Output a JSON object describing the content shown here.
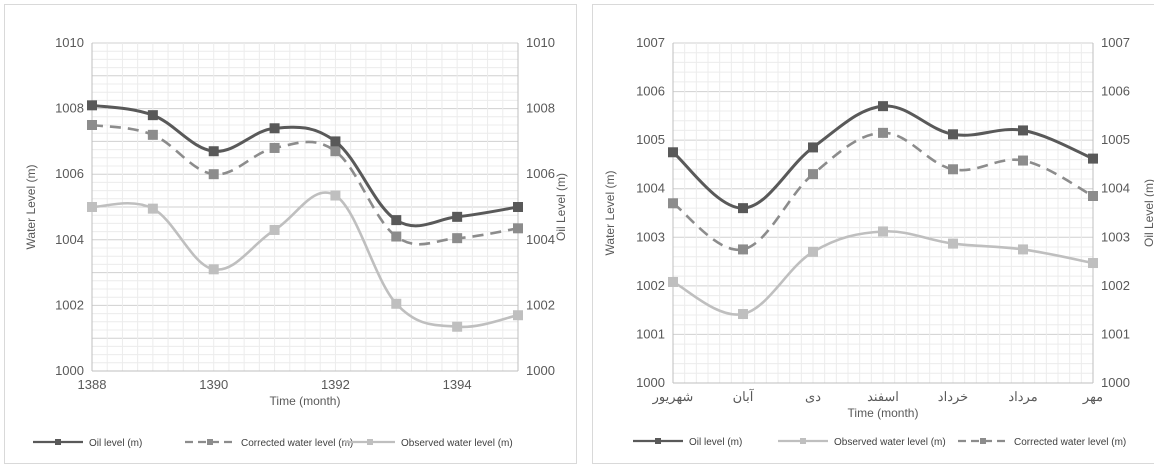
{
  "colors": {
    "oil": "#595959",
    "corrected": "#8c8c8c",
    "observed": "#bfbfbf",
    "grid": "#d9d9d9",
    "axis": "#bfbfbf",
    "text": "#595959"
  },
  "chart_data": [
    {
      "type": "line",
      "title": "",
      "xlabel": "Time (month)",
      "ylabel": "Water Level (m)",
      "y2label": "Oil Level (m)",
      "x": [
        1388,
        1389,
        1390,
        1391,
        1392,
        1393,
        1394,
        1395
      ],
      "xticks": [
        "1388",
        "1390",
        "1392",
        "1394"
      ],
      "xlim": [
        1388,
        1395
      ],
      "ylim": [
        1000,
        1010
      ],
      "yticks": [
        "1000",
        "1002",
        "1004",
        "1006",
        "1008",
        "1010"
      ],
      "y2ticks": [
        "1000",
        "1002",
        "1004",
        "1006",
        "1008",
        "1010"
      ],
      "series": [
        {
          "name": "Oil level (m)",
          "style": "solid",
          "color_key": "oil",
          "values": [
            1008.1,
            1007.8,
            1006.7,
            1007.4,
            1007.0,
            1004.6,
            1004.7,
            1005.0
          ]
        },
        {
          "name": "Corrected water level (m)",
          "style": "dashed",
          "color_key": "corrected",
          "values": [
            1007.5,
            1007.2,
            1006.0,
            1006.8,
            1006.7,
            1004.1,
            1004.05,
            1004.35
          ]
        },
        {
          "name": "Observed water level (m)",
          "style": "solid",
          "color_key": "observed",
          "values": [
            1005.0,
            1004.95,
            1003.1,
            1004.3,
            1005.35,
            1002.05,
            1001.35,
            1001.7
          ]
        }
      ],
      "legend_position": "bottom",
      "grid": true
    },
    {
      "type": "line",
      "title": "",
      "xlabel": "Time (month)",
      "ylabel": "Water Level (m)",
      "y2label": "Oil Level (m)",
      "categories": [
        "شهریور",
        "آبان",
        "دی",
        "اسفند",
        "خرداد",
        "مرداد",
        "مهر"
      ],
      "ylim": [
        1000,
        1007
      ],
      "yticks": [
        "1000",
        "1001",
        "1002",
        "1003",
        "1004",
        "1005",
        "1006",
        "1007"
      ],
      "y2ticks": [
        "1000",
        "1001",
        "1002",
        "1003",
        "1004",
        "1005",
        "1006",
        "1007"
      ],
      "series": [
        {
          "name": "Oil level (m)",
          "style": "solid",
          "color_key": "oil",
          "values": [
            1004.75,
            1003.6,
            1004.85,
            1005.7,
            1005.12,
            1005.2,
            1004.62
          ]
        },
        {
          "name": "Observed water level (m)",
          "style": "solid",
          "color_key": "observed",
          "values": [
            1002.08,
            1001.42,
            1002.7,
            1003.12,
            1002.87,
            1002.75,
            1002.47
          ]
        },
        {
          "name": "Corrected water level (m)",
          "style": "dashed",
          "color_key": "corrected",
          "values": [
            1003.7,
            1002.75,
            1004.3,
            1005.15,
            1004.4,
            1004.58,
            1003.85
          ]
        }
      ],
      "legend_position": "bottom",
      "grid": true
    }
  ]
}
